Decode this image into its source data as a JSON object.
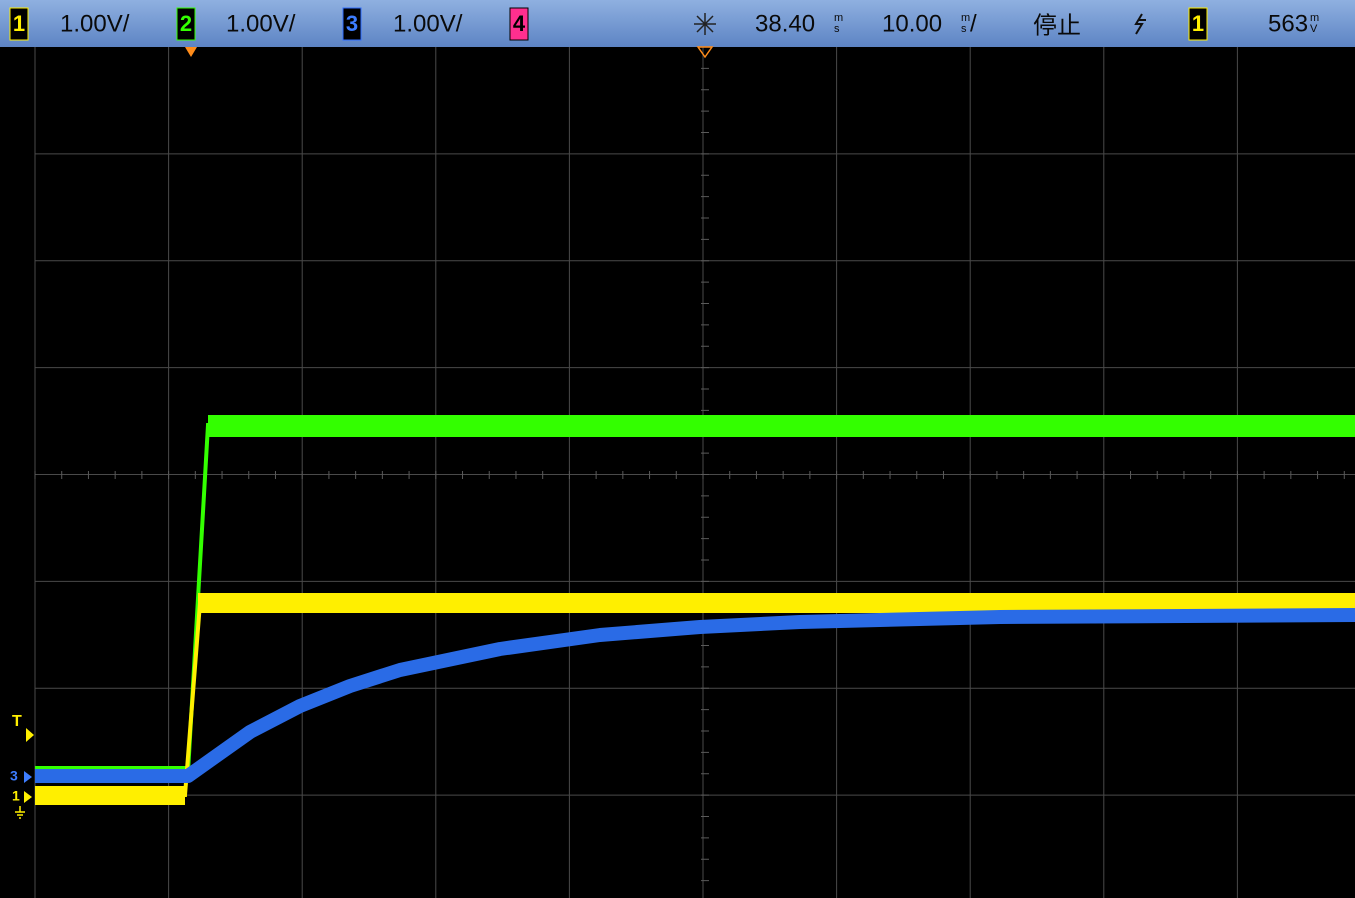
{
  "header": {
    "ch1": {
      "number": "1",
      "scale": "1.00V/"
    },
    "ch2": {
      "number": "2",
      "scale": "1.00V/"
    },
    "ch3": {
      "number": "3",
      "scale": "1.00V/"
    },
    "ch4": {
      "number": "4"
    },
    "delay": {
      "value": "38.40",
      "unit_top": "m",
      "unit_bottom": "s"
    },
    "timebase": {
      "value": "10.00",
      "unit_top": "m",
      "unit_bottom": "s",
      "suffix": "/"
    },
    "run_state": "停止",
    "trigger_source": "1",
    "trigger_level": {
      "value": "563",
      "unit_top": "m",
      "unit_bottom": "V"
    }
  },
  "markers": {
    "trigger": "T",
    "ch3": "3",
    "ch1": "1"
  }
}
